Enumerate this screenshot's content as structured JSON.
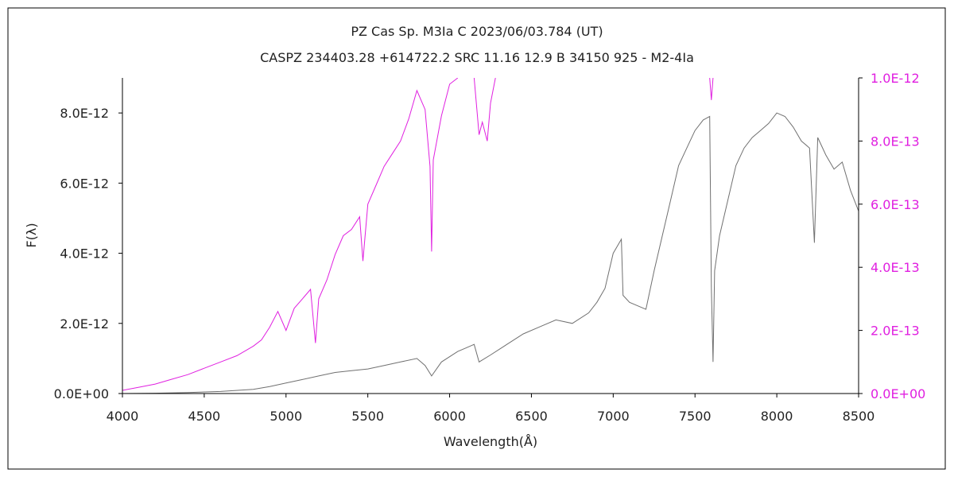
{
  "chart_data": {
    "type": "line",
    "title": "PZ Cas    Sp. M3Ia C    2023/06/03.784 (UT)",
    "subtitle": "CASPZ 234403.28 +614722.2 SRC 11.16 12.9 B 34150 925 - M2-4Ia",
    "xlabel": "Wavelength(Å)",
    "ylabel": "F(λ)",
    "xlim": [
      4000,
      8500
    ],
    "ylim_left": [
      0,
      9e-12
    ],
    "ylim_right": [
      0,
      1e-12
    ],
    "x_ticks": [
      "4000",
      "4500",
      "5000",
      "5500",
      "6000",
      "6500",
      "7000",
      "7500",
      "8000",
      "8500"
    ],
    "x_tick_values": [
      4000,
      4500,
      5000,
      5500,
      6000,
      6500,
      7000,
      7500,
      8000,
      8500
    ],
    "y_ticks_left": [
      "0.0E+00",
      "2.0E-12",
      "4.0E-12",
      "6.0E-12",
      "8.0E-12"
    ],
    "y_tick_values_left": [
      0,
      2e-12,
      4e-12,
      6e-12,
      8e-12
    ],
    "y_ticks_right": [
      "0.0E+00",
      "2.0E-13",
      "4.0E-13",
      "6.0E-13",
      "8.0E-13",
      "1.0E-12"
    ],
    "y_tick_values_right": [
      0,
      2e-13,
      4e-13,
      6e-13,
      8e-13,
      1e-12
    ],
    "grid": false,
    "series": [
      {
        "axis": "left",
        "color": "#707070",
        "x": [
          4000,
          4200,
          4400,
          4600,
          4800,
          4900,
          5000,
          5100,
          5200,
          5300,
          5400,
          5500,
          5600,
          5700,
          5800,
          5850,
          5890,
          5950,
          6050,
          6100,
          6150,
          6180,
          6250,
          6350,
          6450,
          6550,
          6650,
          6750,
          6850,
          6900,
          6950,
          7000,
          7050,
          7060,
          7100,
          7150,
          7200,
          7250,
          7300,
          7350,
          7400,
          7450,
          7500,
          7550,
          7590,
          7600,
          7610,
          7620,
          7650,
          7700,
          7750,
          7800,
          7850,
          7900,
          7950,
          8000,
          8050,
          8100,
          8150,
          8200,
          8230,
          8250,
          8300,
          8350,
          8400,
          8450,
          8500
        ],
        "values": [
          0.0,
          1e-14,
          3e-14,
          6e-14,
          1.2e-13,
          2e-13,
          3e-13,
          4e-13,
          5e-13,
          6e-13,
          6.5e-13,
          7e-13,
          8e-13,
          9e-13,
          1e-12,
          8e-13,
          5e-13,
          9e-13,
          1.2e-12,
          1.3e-12,
          1.4e-12,
          9e-13,
          1.1e-12,
          1.4e-12,
          1.7e-12,
          1.9e-12,
          2.1e-12,
          2e-12,
          2.3e-12,
          2.6e-12,
          3e-12,
          4e-12,
          4.4e-12,
          2.8e-12,
          2.6e-12,
          2.5e-12,
          2.4e-12,
          3.5e-12,
          4.5e-12,
          5.5e-12,
          6.5e-12,
          7e-12,
          7.5e-12,
          7.8e-12,
          7.9e-12,
          3e-12,
          9e-13,
          3.5e-12,
          4.5e-12,
          5.5e-12,
          6.5e-12,
          7e-12,
          7.3e-12,
          7.5e-12,
          7.7e-12,
          8e-12,
          7.9e-12,
          7.6e-12,
          7.2e-12,
          7e-12,
          4.3e-12,
          7.3e-12,
          6.8e-12,
          6.4e-12,
          6.6e-12,
          5.8e-12,
          5.2e-12
        ]
      },
      {
        "axis": "right",
        "color": "#e020e0",
        "x": [
          4000,
          4100,
          4200,
          4300,
          4400,
          4500,
          4600,
          4700,
          4800,
          4850,
          4900,
          4950,
          5000,
          5050,
          5100,
          5150,
          5180,
          5200,
          5250,
          5300,
          5350,
          5400,
          5450,
          5470,
          5500,
          5550,
          5600,
          5650,
          5700,
          5750,
          5800,
          5850,
          5880,
          5890,
          5900,
          5950,
          6000,
          6050
        ],
        "values": [
          1e-14,
          2e-14,
          3e-14,
          4.5e-14,
          6e-14,
          8e-14,
          1e-13,
          1.2e-13,
          1.5e-13,
          1.7e-13,
          2.1e-13,
          2.6e-13,
          2e-13,
          2.7e-13,
          3e-13,
          3.3e-13,
          1.6e-13,
          3e-13,
          3.6e-13,
          4.4e-13,
          5e-13,
          5.2e-13,
          5.6e-13,
          4.2e-13,
          6e-13,
          6.6e-13,
          7.2e-13,
          7.6e-13,
          8e-13,
          8.7e-13,
          9.6e-13,
          9e-13,
          7.2e-13,
          4.5e-13,
          7.4e-13,
          8.8e-13,
          9.8e-13,
          1e-12
        ]
      },
      {
        "axis": "right",
        "color": "#e020e0",
        "x": [
          6150,
          6180,
          6200,
          6230,
          6250,
          6280
        ],
        "values": [
          1e-12,
          8.2e-13,
          8.6e-13,
          8e-13,
          9.2e-13,
          1e-12
        ]
      },
      {
        "axis": "right",
        "color": "#e020e0",
        "x": [
          7590,
          7600,
          7610
        ],
        "values": [
          1e-12,
          9.3e-13,
          1e-12
        ]
      }
    ]
  }
}
